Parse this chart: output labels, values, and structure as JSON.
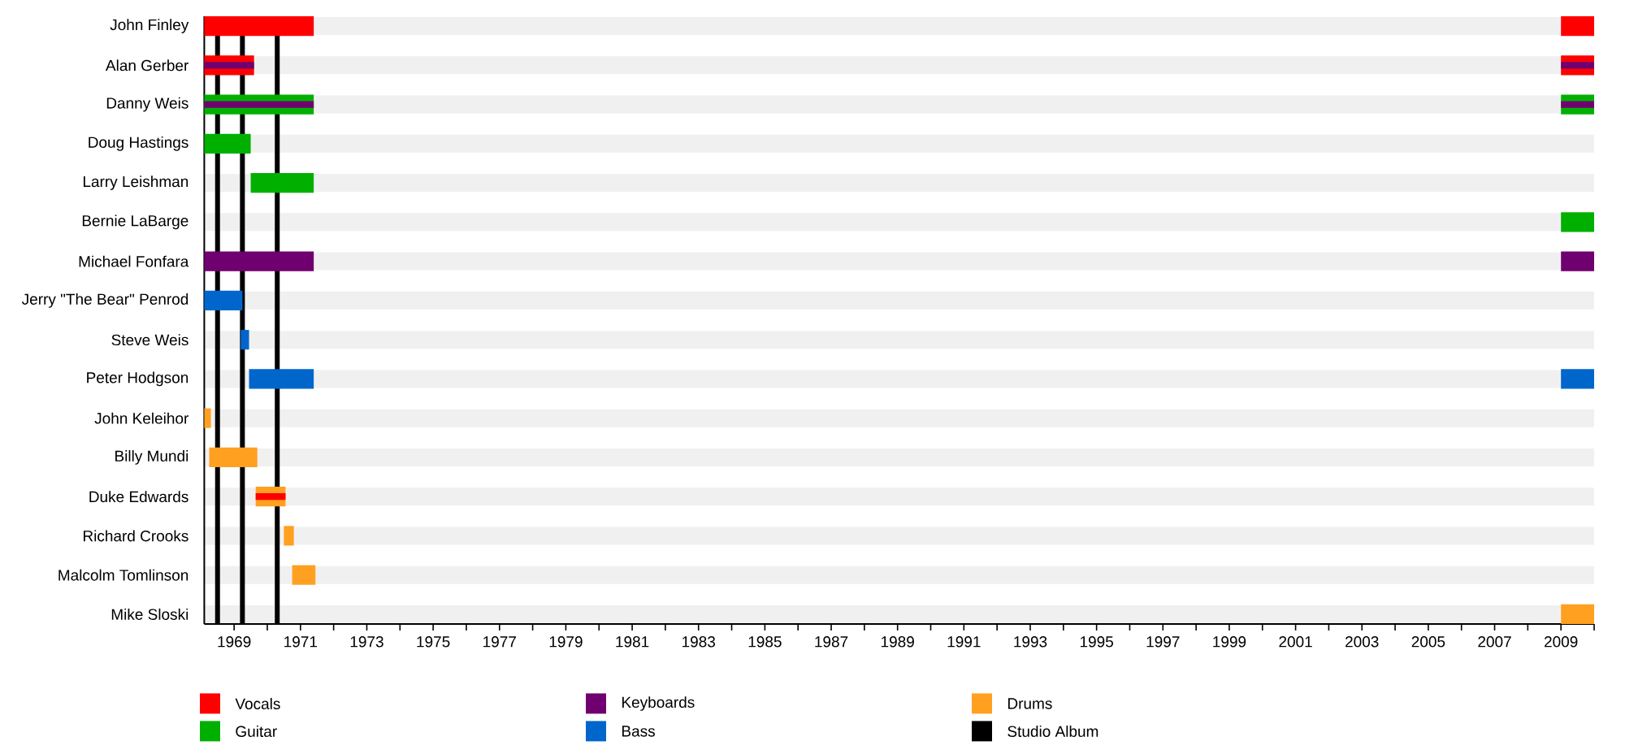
{
  "chart_data": {
    "type": "bar",
    "orientation": "horizontal",
    "categories": [
      "John Finley",
      "Alan Gerber",
      "Danny Weis",
      "Doug Hastings",
      "Larry Leishman",
      "Bernie LaBarge",
      "Michael Fonfara",
      "Jerry \"The Bear\" Penrod",
      "Steve Weis",
      "Peter Hodgson",
      "John Keleihor",
      "Billy Mundi",
      "Duke Edwards",
      "Richard Crooks",
      "Malcolm Tomlinson",
      "Mike Sloski"
    ],
    "series": [
      {
        "name": "Vocals",
        "color": "#ff0000",
        "base": [
          1968.1,
          1968.1,
          null,
          null,
          null,
          null,
          null,
          null,
          null,
          null,
          null,
          null,
          null,
          null,
          null,
          null
        ],
        "values": [
          3.3,
          1.5,
          null,
          null,
          null,
          null,
          null,
          null,
          null,
          null,
          null,
          null,
          null,
          null,
          null,
          null
        ]
      },
      {
        "name": "Guitar",
        "color": "#00b000",
        "base": [
          null,
          null,
          1968.1,
          1968.1,
          1969.5,
          null,
          null,
          null,
          null,
          null,
          null,
          null,
          null,
          null,
          null,
          null
        ],
        "values": [
          null,
          null,
          3.3,
          1.4,
          1.9,
          null,
          null,
          null,
          null,
          null,
          null,
          null,
          null,
          null,
          null,
          null
        ]
      },
      {
        "name": "Keyboards",
        "color": "#700070",
        "base": [
          null,
          null,
          null,
          null,
          null,
          null,
          1968.1,
          null,
          null,
          null,
          null,
          null,
          null,
          null,
          null,
          null
        ],
        "values": [
          null,
          null,
          null,
          null,
          null,
          null,
          3.3,
          null,
          null,
          null,
          null,
          null,
          null,
          null,
          null,
          null
        ]
      },
      {
        "name": "Bass",
        "color": "#0066cc",
        "base": [
          null,
          null,
          null,
          null,
          null,
          null,
          null,
          1968.1,
          1969.2,
          1969.45,
          null,
          null,
          null,
          null,
          null,
          null
        ],
        "values": [
          null,
          null,
          null,
          null,
          null,
          null,
          null,
          1.15,
          0.25,
          1.95,
          null,
          null,
          null,
          null,
          null,
          null
        ]
      },
      {
        "name": "Drums",
        "color": "#ffa020",
        "base": [
          null,
          null,
          null,
          null,
          null,
          null,
          null,
          null,
          null,
          null,
          1968.1,
          1968.25,
          1969.65,
          1970.5,
          1970.75,
          null
        ],
        "values": [
          null,
          null,
          null,
          null,
          null,
          null,
          null,
          null,
          null,
          null,
          0.2,
          1.45,
          0.9,
          0.3,
          0.7,
          null
        ]
      },
      {
        "color": "#00b000",
        "base": [
          null,
          null,
          2009,
          null,
          null,
          2009,
          null,
          null,
          null,
          null,
          null,
          null,
          null,
          null,
          null,
          null
        ],
        "values": [
          null,
          null,
          1,
          null,
          null,
          1,
          null,
          null,
          null,
          null,
          null,
          null,
          null,
          null,
          null,
          null
        ]
      },
      {
        "color": "#0066cc",
        "base": [
          null,
          null,
          null,
          null,
          null,
          null,
          null,
          null,
          null,
          2009,
          null,
          null,
          null,
          null,
          null,
          null
        ],
        "values": [
          null,
          null,
          null,
          null,
          null,
          null,
          null,
          null,
          null,
          1,
          null,
          null,
          null,
          null,
          null,
          null
        ]
      },
      {
        "color": "#ffa020",
        "base": [
          null,
          null,
          null,
          null,
          null,
          null,
          null,
          null,
          null,
          null,
          null,
          null,
          null,
          null,
          null,
          2009
        ],
        "values": [
          null,
          null,
          null,
          null,
          null,
          null,
          null,
          null,
          null,
          null,
          null,
          null,
          null,
          null,
          null,
          1
        ]
      },
      {
        "color": "#ff0000",
        "base": [
          2009,
          2009,
          null,
          null,
          null,
          null,
          null,
          null,
          null,
          null,
          null,
          null,
          1969.65,
          null,
          null,
          null
        ],
        "values": [
          1,
          1,
          null,
          null,
          null,
          null,
          null,
          null,
          null,
          null,
          null,
          null,
          0.9,
          null,
          null,
          null
        ]
      },
      {
        "color": "#700070",
        "base": [
          null,
          1968.1,
          1968.1,
          null,
          null,
          null,
          2009,
          null,
          null,
          null,
          null,
          null,
          null,
          null,
          null,
          null
        ],
        "values": [
          null,
          1.5,
          3.3,
          null,
          null,
          null,
          1,
          null,
          null,
          null,
          null,
          null,
          null,
          null,
          null,
          null
        ]
      },
      {
        "color": "#700070",
        "base": [
          null,
          2009,
          2009,
          null,
          null,
          null,
          null,
          null,
          null,
          null,
          null,
          null,
          null,
          null,
          null,
          null
        ],
        "values": [
          null,
          1,
          1,
          null,
          null,
          null,
          null,
          null,
          null,
          null,
          null,
          null,
          null,
          null,
          null,
          null
        ]
      }
    ],
    "ref_lines": [
      {
        "axis": "x",
        "value": 1968.5,
        "label": "Studio Album",
        "color": "#000000"
      },
      {
        "axis": "x",
        "value": 1969.25,
        "color": "#000000"
      },
      {
        "axis": "x",
        "value": 1970.3,
        "color": "#000000"
      }
    ],
    "xlim": [
      1968.1,
      2010
    ],
    "xticks": [
      1969,
      {
        "value": 1970,
        "label": null
      },
      1971,
      {
        "value": 1972,
        "label": null
      },
      1973,
      {
        "value": 1974,
        "label": null
      },
      1975,
      {
        "value": 1976,
        "label": null
      },
      1977,
      {
        "value": 1978,
        "label": null
      },
      1979,
      {
        "value": 1980,
        "label": null
      },
      1981,
      {
        "value": 1982,
        "label": null
      },
      1983,
      {
        "value": 1984,
        "label": null
      },
      1985,
      {
        "value": 1986,
        "label": null
      },
      1987,
      {
        "value": 1988,
        "label": null
      },
      1989,
      {
        "value": 1990,
        "label": null
      },
      1991,
      {
        "value": 1992,
        "label": null
      },
      1993,
      {
        "value": 1994,
        "label": null
      },
      1995,
      {
        "value": 1996,
        "label": null
      },
      1997,
      {
        "value": 1998,
        "label": null
      },
      1999,
      {
        "value": 2000,
        "label": null
      },
      2001,
      {
        "value": 2002,
        "label": null
      },
      2003,
      {
        "value": 2004,
        "label": null
      },
      2005,
      {
        "value": 2006,
        "label": null
      },
      2007,
      {
        "value": 2008,
        "label": null
      },
      2009,
      {
        "value": 2010,
        "label": null
      }
    ],
    "grid": "y",
    "legend": "bottom"
  }
}
